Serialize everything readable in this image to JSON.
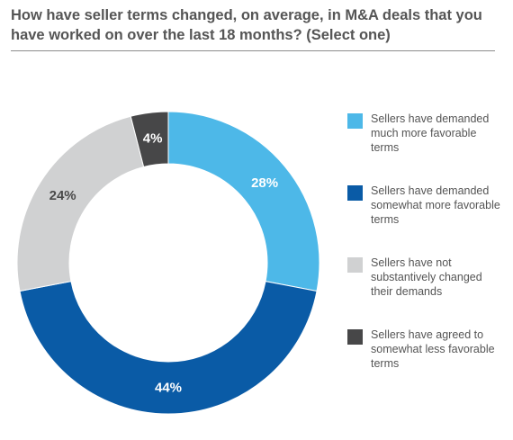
{
  "title": "How have seller terms changed, on average, in M&A deals that you have worked on over the last 18 months? (Select one)",
  "chart_data": {
    "type": "pie",
    "style": "donut",
    "title": "How have seller terms changed, on average, in M&A deals that you have worked on over the last 18 months? (Select one)",
    "legend_position": "right",
    "slices": [
      {
        "label": "Sellers have demanded much more favorable terms",
        "value": 28,
        "value_label": "28%",
        "color": "#4db8e8",
        "text_color": "#ffffff"
      },
      {
        "label": "Sellers have demanded somewhat more favorable terms",
        "value": 44,
        "value_label": "44%",
        "color": "#0a5ba6",
        "text_color": "#ffffff"
      },
      {
        "label": "Sellers have not substantively changed their demands",
        "value": 24,
        "value_label": "24%",
        "color": "#d0d1d2",
        "text_color": "#4a4a4a"
      },
      {
        "label": "Sellers have agreed to somewhat less favorable terms",
        "value": 4,
        "value_label": "4%",
        "color": "#474748",
        "text_color": "#ffffff"
      }
    ]
  }
}
